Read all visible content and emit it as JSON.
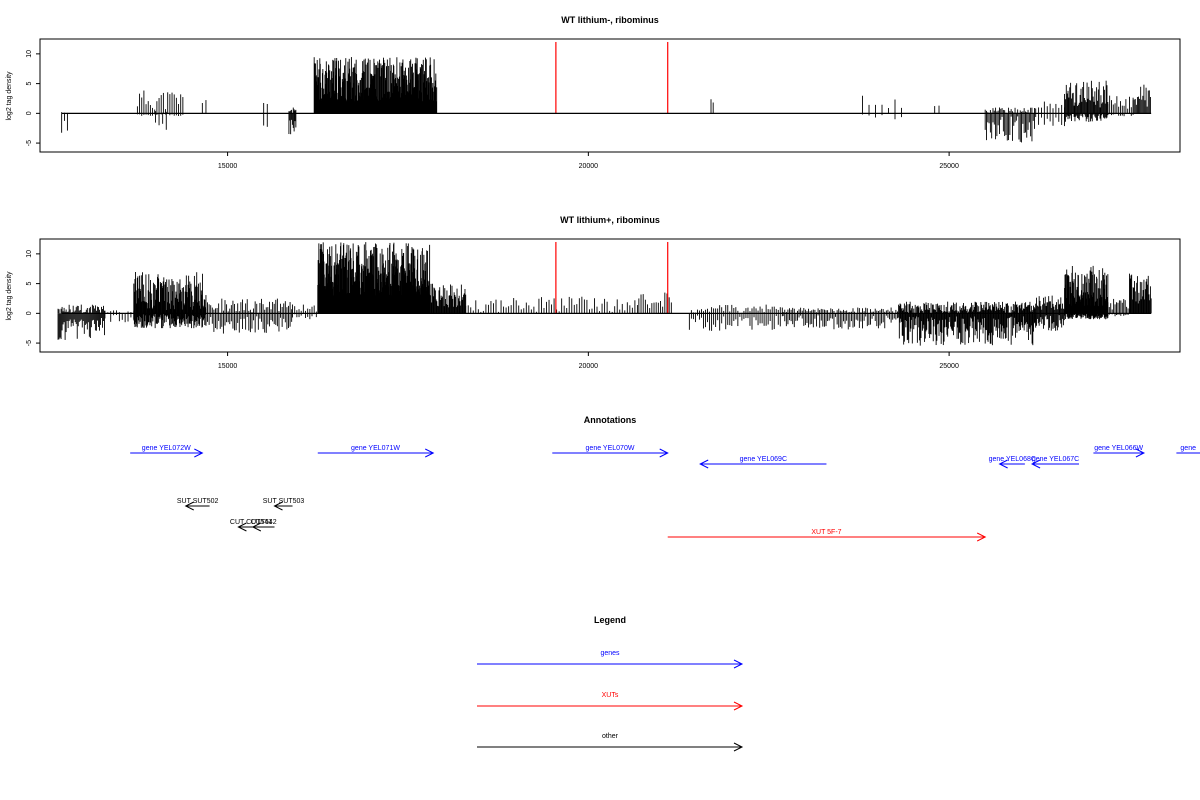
{
  "colors": {
    "black": "#000000",
    "red": "#ff0000",
    "blue": "#0000ff"
  },
  "chart_data": [
    {
      "type": "bar",
      "title": "WT lithium-, ribominus",
      "ylabel": "log2 tag density",
      "xlim": [
        12400,
        28200
      ],
      "ylim": [
        -6.5,
        12.5
      ],
      "x_ticks": [
        15000,
        20000,
        25000
      ],
      "y_ticks": [
        -5,
        0,
        5,
        10
      ],
      "markers": [
        {
          "x": 19550,
          "y": 12,
          "color": "red"
        },
        {
          "x": 21100,
          "y": 12,
          "color": "red"
        }
      ],
      "segments": [
        {
          "start": 12700,
          "end": 12800,
          "step": 40,
          "pos_min": 0,
          "pos_max": 0.3,
          "neg_min": 1,
          "neg_max": 3.5
        },
        {
          "start": 13750,
          "end": 14400,
          "step": 30,
          "pos_min": 0.5,
          "pos_max": 4,
          "neg_min": 0,
          "neg_max": 0.5
        },
        {
          "start": 14000,
          "end": 14150,
          "step": 50,
          "pos_min": 0,
          "pos_max": 0.5,
          "neg_min": 1,
          "neg_max": 3
        },
        {
          "start": 14650,
          "end": 14700,
          "step": 50,
          "pos_min": 1,
          "pos_max": 2.8,
          "neg_min": 0,
          "neg_max": 0
        },
        {
          "start": 15500,
          "end": 15550,
          "step": 50,
          "pos_min": 1,
          "pos_max": 1.8,
          "neg_min": 2,
          "neg_max": 3.5
        },
        {
          "start": 15850,
          "end": 15950,
          "step": 12,
          "pos_min": 0,
          "pos_max": 1,
          "neg_min": 1,
          "neg_max": 4
        },
        {
          "start": 16200,
          "end": 17900,
          "step": 6,
          "pos_min": 2,
          "pos_max": 9.5,
          "neg_min": 0,
          "neg_max": 0
        },
        {
          "start": 21700,
          "end": 21750,
          "step": 30,
          "pos_min": 1,
          "pos_max": 2.5,
          "neg_min": 0,
          "neg_max": 0
        },
        {
          "start": 23800,
          "end": 24400,
          "step": 90,
          "pos_min": 0.5,
          "pos_max": 3.5,
          "neg_min": 0,
          "neg_max": 1
        },
        {
          "start": 24800,
          "end": 24900,
          "step": 60,
          "pos_min": 0.5,
          "pos_max": 1.5,
          "neg_min": 0,
          "neg_max": 0
        },
        {
          "start": 25500,
          "end": 26200,
          "step": 18,
          "pos_min": 0,
          "pos_max": 1,
          "neg_min": 0.5,
          "neg_max": 5
        },
        {
          "start": 26200,
          "end": 26600,
          "step": 40,
          "pos_min": 0.3,
          "pos_max": 2,
          "neg_min": 0,
          "neg_max": 2.5
        },
        {
          "start": 26600,
          "end": 27200,
          "step": 12,
          "pos_min": 1,
          "pos_max": 5.5,
          "neg_min": 0,
          "neg_max": 1.5
        },
        {
          "start": 27200,
          "end": 27550,
          "step": 25,
          "pos_min": 0.5,
          "pos_max": 3,
          "neg_min": 0,
          "neg_max": 0.5
        },
        {
          "start": 27550,
          "end": 27800,
          "step": 15,
          "pos_min": 1,
          "pos_max": 5,
          "neg_min": 0,
          "neg_max": 0
        }
      ]
    },
    {
      "type": "bar",
      "title": "WT lithium+, ribominus",
      "ylabel": "log2 tag density",
      "xlim": [
        12400,
        28200
      ],
      "ylim": [
        -6.5,
        12.5
      ],
      "x_ticks": [
        15000,
        20000,
        25000
      ],
      "y_ticks": [
        -5,
        0,
        5,
        10
      ],
      "markers": [
        {
          "x": 19550,
          "y": 12,
          "color": "red"
        },
        {
          "x": 21100,
          "y": 12,
          "color": "red"
        }
      ],
      "segments": [
        {
          "start": 12650,
          "end": 13300,
          "step": 14,
          "pos_min": 0,
          "pos_max": 1.5,
          "neg_min": 0.5,
          "neg_max": 4.5
        },
        {
          "start": 13300,
          "end": 13700,
          "step": 40,
          "pos_min": 0,
          "pos_max": 0.5,
          "neg_min": 0,
          "neg_max": 1.5
        },
        {
          "start": 13700,
          "end": 14700,
          "step": 8,
          "pos_min": 0.5,
          "pos_max": 7,
          "neg_min": 0,
          "neg_max": 2.5
        },
        {
          "start": 14700,
          "end": 15900,
          "step": 22,
          "pos_min": 0,
          "pos_max": 2.5,
          "neg_min": 0.5,
          "neg_max": 3.5
        },
        {
          "start": 15900,
          "end": 16250,
          "step": 30,
          "pos_min": 0,
          "pos_max": 1.5,
          "neg_min": 0,
          "neg_max": 1
        },
        {
          "start": 16250,
          "end": 17800,
          "step": 5,
          "pos_min": 3,
          "pos_max": 12,
          "neg_min": 0,
          "neg_max": 0
        },
        {
          "start": 17800,
          "end": 18300,
          "step": 10,
          "pos_min": 1,
          "pos_max": 5,
          "neg_min": 0,
          "neg_max": 0
        },
        {
          "start": 18300,
          "end": 20700,
          "step": 35,
          "pos_min": 0.2,
          "pos_max": 2.8,
          "neg_min": 0,
          "neg_max": 0
        },
        {
          "start": 20700,
          "end": 21150,
          "step": 30,
          "pos_min": 0.5,
          "pos_max": 3.5,
          "neg_min": 0,
          "neg_max": 0
        },
        {
          "start": 21400,
          "end": 22700,
          "step": 28,
          "pos_min": 0,
          "pos_max": 1.5,
          "neg_min": 0.3,
          "neg_max": 3
        },
        {
          "start": 22700,
          "end": 24300,
          "step": 22,
          "pos_min": 0,
          "pos_max": 1,
          "neg_min": 0.3,
          "neg_max": 2.8
        },
        {
          "start": 24300,
          "end": 26200,
          "step": 10,
          "pos_min": 0,
          "pos_max": 2,
          "neg_min": 0.5,
          "neg_max": 5.5
        },
        {
          "start": 26200,
          "end": 26600,
          "step": 12,
          "pos_min": 0.5,
          "pos_max": 3,
          "neg_min": 0.3,
          "neg_max": 3
        },
        {
          "start": 26600,
          "end": 27200,
          "step": 6,
          "pos_min": 1,
          "pos_max": 8,
          "neg_min": 0,
          "neg_max": 1
        },
        {
          "start": 27200,
          "end": 27500,
          "step": 20,
          "pos_min": 0.5,
          "pos_max": 2.5,
          "neg_min": 0,
          "neg_max": 0.5
        },
        {
          "start": 27500,
          "end": 27800,
          "step": 10,
          "pos_min": 1,
          "pos_max": 7,
          "neg_min": 0,
          "neg_max": 0
        }
      ]
    }
  ],
  "annotations": {
    "title": "Annotations",
    "features": [
      {
        "label": "gene YEL072W",
        "color": "blue",
        "start": 13650,
        "end": 14650,
        "dir": "right",
        "row": 0
      },
      {
        "label": "gene YEL071W",
        "color": "blue",
        "start": 16250,
        "end": 17850,
        "dir": "right",
        "row": 0
      },
      {
        "label": "gene YEL070W",
        "color": "blue",
        "start": 19500,
        "end": 21100,
        "dir": "right",
        "row": 0
      },
      {
        "label": "gene YEL069C",
        "color": "blue",
        "start": 21550,
        "end": 23300,
        "dir": "left",
        "row": 1
      },
      {
        "label": "gene YEL068C",
        "color": "blue",
        "start": 25700,
        "end": 26050,
        "dir": "left",
        "row": 1
      },
      {
        "label": "gene YEL067C",
        "color": "blue",
        "start": 26150,
        "end": 26800,
        "dir": "left",
        "row": 1
      },
      {
        "label": "gene YEL066W",
        "color": "blue",
        "start": 27000,
        "end": 27700,
        "dir": "right",
        "row": 0
      },
      {
        "label": "gene",
        "color": "blue",
        "start": 28150,
        "end": 29000,
        "dir": "right",
        "row": 0
      },
      {
        "label": "SUT SUT502",
        "color": "black",
        "start": 14420,
        "end": 14750,
        "dir": "left",
        "row": 2
      },
      {
        "label": "SUT SUT503",
        "color": "black",
        "start": 15650,
        "end": 15900,
        "dir": "left",
        "row": 2
      },
      {
        "label": "CUT CUT541",
        "color": "black",
        "start": 15150,
        "end": 15500,
        "dir": "left",
        "row": 3
      },
      {
        "label": "CUT542",
        "color": "black",
        "start": 15350,
        "end": 15650,
        "dir": "left",
        "row": 3
      },
      {
        "label": "XUT 5F-7",
        "color": "red",
        "start": 21100,
        "end": 25500,
        "dir": "right",
        "row": 4
      }
    ]
  },
  "legend": {
    "title": "Legend",
    "items": [
      {
        "label": "genes",
        "color": "blue"
      },
      {
        "label": "XUTs",
        "color": "red"
      },
      {
        "label": "other",
        "color": "black"
      }
    ]
  }
}
